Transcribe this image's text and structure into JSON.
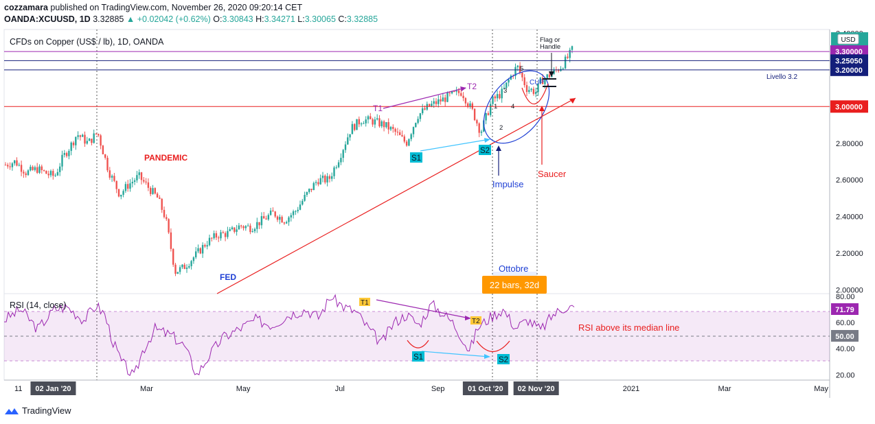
{
  "header": {
    "author": "cozzamara",
    "published": "published on TradingView.com, November 26, 2020 09:20:14 CET",
    "symbol": "OANDA:XCUUSD, 1D",
    "last": "3.32885",
    "change": "+0.02042 (+0.62%)",
    "o_label": "O:",
    "o": "3.30843",
    "h_label": "H:",
    "h": "3.34271",
    "l_label": "L:",
    "l": "3.30065",
    "c_label": "C:",
    "c": "3.32885"
  },
  "chart_data": [
    {
      "type": "candlestick",
      "title": "CFDs on Copper (US$ / lb), 1D, OANDA",
      "currency": "USD",
      "ylim": [
        1.98,
        3.42
      ],
      "y_ticks": [
        "2.00000",
        "2.20000",
        "2.40000",
        "2.60000",
        "2.80000",
        "3.00000",
        "3.20000",
        "3.40000"
      ],
      "x_ticks": [
        "11",
        "02 Jan '20",
        "Mar",
        "May",
        "Jul",
        "Sep",
        "01 Oct '20",
        "02 Nov '20",
        "2021",
        "Mar",
        "May"
      ],
      "close_path": [
        [
          "2019-12-02",
          2.68
        ],
        [
          "2019-12-09",
          2.7
        ],
        [
          "2019-12-16",
          2.64
        ],
        [
          "2019-12-23",
          2.66
        ],
        [
          "2019-12-30",
          2.63
        ],
        [
          "2020-01-03",
          2.62
        ],
        [
          "2020-01-08",
          2.72
        ],
        [
          "2020-01-14",
          2.8
        ],
        [
          "2020-01-17",
          2.85
        ],
        [
          "2020-01-20",
          2.83
        ],
        [
          "2020-01-24",
          2.8
        ],
        [
          "2020-01-30",
          2.86
        ],
        [
          "2020-02-06",
          2.65
        ],
        [
          "2020-02-13",
          2.52
        ],
        [
          "2020-02-18",
          2.57
        ],
        [
          "2020-02-25",
          2.62
        ],
        [
          "2020-03-03",
          2.55
        ],
        [
          "2020-03-08",
          2.5
        ],
        [
          "2020-03-13",
          2.39
        ],
        [
          "2020-03-19",
          2.1
        ],
        [
          "2020-03-24",
          2.12
        ],
        [
          "2020-04-01",
          2.19
        ],
        [
          "2020-04-08",
          2.26
        ],
        [
          "2020-04-15",
          2.3
        ],
        [
          "2020-04-22",
          2.31
        ],
        [
          "2020-04-29",
          2.35
        ],
        [
          "2020-05-06",
          2.34
        ],
        [
          "2020-05-13",
          2.38
        ],
        [
          "2020-05-20",
          2.42
        ],
        [
          "2020-05-27",
          2.38
        ],
        [
          "2020-06-03",
          2.43
        ],
        [
          "2020-06-10",
          2.52
        ],
        [
          "2020-06-17",
          2.6
        ],
        [
          "2020-06-24",
          2.6
        ],
        [
          "2020-07-01",
          2.73
        ],
        [
          "2020-07-08",
          2.88
        ],
        [
          "2020-07-15",
          2.93
        ],
        [
          "2020-07-22",
          2.92
        ],
        [
          "2020-07-29",
          2.9
        ],
        [
          "2020-08-05",
          2.86
        ],
        [
          "2020-08-12",
          2.8
        ],
        [
          "2020-08-19",
          2.95
        ],
        [
          "2020-08-26",
          3.0
        ],
        [
          "2020-09-02",
          3.03
        ],
        [
          "2020-09-09",
          3.06
        ],
        [
          "2020-09-16",
          3.08
        ],
        [
          "2020-09-23",
          2.97
        ],
        [
          "2020-09-28",
          2.86
        ],
        [
          "2020-10-05",
          3.03
        ],
        [
          "2020-10-12",
          3.08
        ],
        [
          "2020-10-16",
          3.15
        ],
        [
          "2020-10-21",
          3.22
        ],
        [
          "2020-10-27",
          3.1
        ],
        [
          "2020-11-02",
          3.08
        ],
        [
          "2020-11-05",
          3.14
        ],
        [
          "2020-11-12",
          3.18
        ],
        [
          "2020-11-18",
          3.22
        ],
        [
          "2020-11-23",
          3.28
        ],
        [
          "2020-11-26",
          3.33
        ]
      ],
      "price_labels": [
        {
          "value": 3.3,
          "text": "3.30000",
          "color": "#9c27b0"
        },
        {
          "value": 3.2505,
          "text": "3.25050",
          "color": "#131e7a"
        },
        {
          "value": 3.2,
          "text": "3.20000",
          "color": "#131e7a"
        },
        {
          "value": 3.0,
          "text": "3.00000",
          "color": "#e91e1e"
        }
      ],
      "annotations": {
        "pandemic": "PANDEMIC",
        "fed": "FED",
        "t1": "T1",
        "t2": "T2",
        "s1": "S1",
        "s2": "S2",
        "impulse": "Impulse",
        "saucer": "Saucer",
        "cup": "CUP",
        "flag": "Flag or",
        "handle": "Handle",
        "livello": "Livello 3.2",
        "ottobre": "Ottobre",
        "range": "22 bars, 32d",
        "wave_1": "1",
        "wave_2": "2",
        "wave_3": "3",
        "wave_4": "4",
        "wave_5": "5"
      }
    },
    {
      "type": "line",
      "title": "RSI (14, close)",
      "ylim": [
        16,
        82
      ],
      "y_ticks": [
        "20.00",
        "40.00",
        "60.00",
        "80.00"
      ],
      "median_label": "50.00",
      "last_label": "71.79",
      "values": [
        [
          0,
          62
        ],
        [
          8,
          70
        ],
        [
          16,
          55
        ],
        [
          24,
          70
        ],
        [
          30,
          72
        ],
        [
          38,
          62
        ],
        [
          44,
          73
        ],
        [
          48,
          66
        ],
        [
          52,
          45
        ],
        [
          56,
          30
        ],
        [
          62,
          18
        ],
        [
          66,
          38
        ],
        [
          72,
          55
        ],
        [
          80,
          50
        ],
        [
          86,
          42
        ],
        [
          92,
          20
        ],
        [
          98,
          35
        ],
        [
          104,
          48
        ],
        [
          112,
          55
        ],
        [
          120,
          62
        ],
        [
          128,
          58
        ],
        [
          136,
          66
        ],
        [
          144,
          70
        ],
        [
          150,
          64
        ],
        [
          156,
          80
        ],
        [
          162,
          72
        ],
        [
          168,
          68
        ],
        [
          174,
          55
        ],
        [
          180,
          44
        ],
        [
          186,
          60
        ],
        [
          192,
          66
        ],
        [
          198,
          58
        ],
        [
          204,
          74
        ],
        [
          210,
          66
        ],
        [
          214,
          60
        ],
        [
          218,
          50
        ],
        [
          222,
          38
        ],
        [
          226,
          56
        ],
        [
          232,
          64
        ],
        [
          238,
          70
        ],
        [
          244,
          56
        ],
        [
          250,
          62
        ],
        [
          256,
          54
        ],
        [
          262,
          66
        ],
        [
          268,
          72
        ],
        [
          272,
          71.79
        ]
      ],
      "annotations": {
        "rsi_note": "RSI above its median line",
        "t1": "T1",
        "t2": "T2",
        "s1": "S1",
        "s2": "S2"
      }
    }
  ],
  "footer": {
    "brand": "TradingView"
  },
  "colors": {
    "up": "#26a69a",
    "down": "#ef5350",
    "purple": "#9c27b0",
    "navy": "#131e7a",
    "red": "#e91e1e",
    "cyan": "#00bcd4",
    "orange": "#ff9800",
    "blue": "#1e5fd4"
  }
}
